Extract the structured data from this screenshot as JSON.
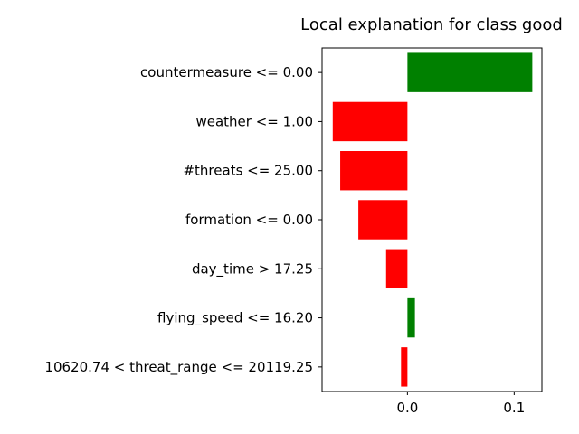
{
  "chart_data": {
    "type": "bar",
    "orientation": "horizontal",
    "title": "Local explanation for class good",
    "categories": [
      "countermeasure <= 0.00",
      "weather <= 1.00",
      "#threats <= 25.00",
      "formation <= 0.00",
      "day_time > 17.25",
      "flying_speed <= 16.20",
      "10620.74 < threat_range <= 20119.25"
    ],
    "values": [
      0.117,
      -0.07,
      -0.063,
      -0.046,
      -0.02,
      0.007,
      -0.006
    ],
    "bar_colors": {
      "positive": "#008000",
      "negative": "#ff0000"
    },
    "xlim": [
      -0.08,
      0.126
    ],
    "xticks": [
      0.0,
      0.1
    ],
    "xtick_labels": [
      "0.0",
      "0.1"
    ],
    "xlabel": "",
    "ylabel": "",
    "grid": false,
    "legend": false
  }
}
